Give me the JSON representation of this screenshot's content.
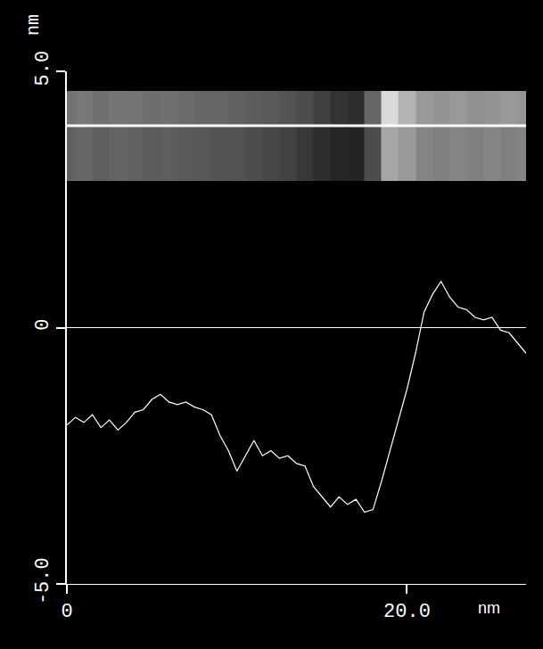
{
  "chart_data": {
    "type": "line",
    "color": "#ffffff",
    "grid": false,
    "xlabel": "nm",
    "ylabel": "nm",
    "x": [
      0,
      0.5,
      1,
      1.5,
      2,
      2.5,
      3,
      3.5,
      4,
      4.5,
      5,
      5.5,
      6,
      6.5,
      7,
      7.5,
      8,
      8.5,
      9,
      9.5,
      10,
      10.5,
      11,
      11.5,
      12,
      12.5,
      13,
      13.5,
      14,
      14.5,
      15,
      15.5,
      16,
      16.5,
      17,
      17.5,
      18,
      18.5,
      19,
      19.5,
      20,
      20.5,
      21,
      21.5,
      22,
      22.5,
      23,
      23.5,
      24,
      24.5,
      25,
      25.5,
      26,
      26.5,
      27
    ],
    "values": [
      -1.9,
      -1.75,
      -1.85,
      -1.7,
      -1.95,
      -1.8,
      -2.0,
      -1.85,
      -1.65,
      -1.6,
      -1.4,
      -1.3,
      -1.45,
      -1.5,
      -1.45,
      -1.55,
      -1.6,
      -1.7,
      -2.1,
      -2.4,
      -2.8,
      -2.5,
      -2.2,
      -2.5,
      -2.4,
      -2.55,
      -2.5,
      -2.65,
      -2.7,
      -3.1,
      -3.3,
      -3.5,
      -3.3,
      -3.45,
      -3.35,
      -3.6,
      -3.55,
      -3.0,
      -2.4,
      -1.8,
      -1.2,
      -0.5,
      0.3,
      0.65,
      0.9,
      0.6,
      0.4,
      0.35,
      0.2,
      0.15,
      0.2,
      -0.05,
      -0.1,
      -0.3,
      -0.5
    ],
    "xlim": [
      0,
      27
    ],
    "xticks": [
      0,
      {
        "value": 20,
        "label": "20.0"
      }
    ],
    "ylim": [
      -5,
      5
    ],
    "yticks": [
      {
        "value": -5,
        "label": "-5.0"
      },
      0,
      {
        "value": 5,
        "label": "5.0"
      }
    ],
    "inset": {
      "x": [
        0,
        1,
        2,
        3,
        4,
        5,
        6,
        7,
        8,
        9,
        10,
        11,
        12,
        13,
        14,
        15,
        16,
        17,
        18,
        19,
        20,
        21,
        22,
        23,
        24,
        25,
        26,
        27
      ],
      "z": [
        [
          0.38,
          0.4,
          0.37,
          0.39,
          0.38,
          0.36,
          0.37,
          0.35,
          0.34,
          0.33,
          0.32,
          0.3,
          0.28,
          0.26,
          0.22,
          0.18,
          0.15,
          0.14,
          0.3,
          0.65,
          0.6,
          0.52,
          0.5,
          0.52,
          0.5,
          0.52,
          0.5,
          0.52
        ],
        [
          0.45,
          0.47,
          0.44,
          0.46,
          0.45,
          0.43,
          0.44,
          0.42,
          0.4,
          0.4,
          0.38,
          0.36,
          0.35,
          0.33,
          0.3,
          0.25,
          0.2,
          0.18,
          0.4,
          0.85,
          0.7,
          0.6,
          0.58,
          0.6,
          0.57,
          0.58,
          0.6,
          0.58
        ]
      ],
      "zlim": [
        0,
        1
      ]
    }
  }
}
